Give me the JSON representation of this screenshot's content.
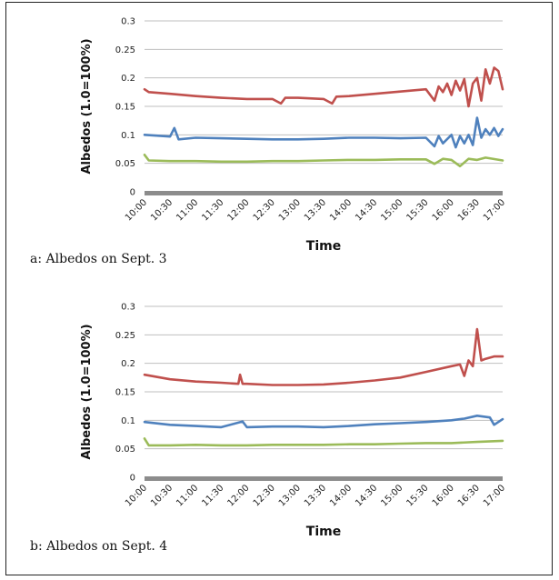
{
  "colors": {
    "series_red": "#c0504d",
    "series_blue": "#4f81bd",
    "series_green": "#9bbb59",
    "grid": "#bfbfbf",
    "axis": "#8c8c8c"
  },
  "chart_data": [
    {
      "type": "line",
      "caption": "a: Albedos on Sept. 3",
      "xlabel": "Time",
      "ylabel": "Albedos (1.0=100%)",
      "x_ticks": [
        "10:00",
        "10:30",
        "11:00",
        "11:30",
        "12:00",
        "12:30",
        "13:00",
        "13:30",
        "14:00",
        "14:30",
        "15:00",
        "15:30",
        "16:00",
        "16:30",
        "17:00"
      ],
      "y_ticks": [
        "0",
        "0.05",
        "0.1",
        "0.15",
        "0.2",
        "0.25",
        "0.3"
      ],
      "ylim": [
        0,
        0.3
      ],
      "grid": true,
      "series": [
        {
          "color": "#c0504d",
          "x": [
            "10:00",
            "10:05",
            "10:30",
            "11:00",
            "11:30",
            "12:00",
            "12:30",
            "12:40",
            "12:45",
            "13:00",
            "13:30",
            "13:40",
            "13:45",
            "14:00",
            "14:30",
            "15:00",
            "15:30",
            "15:40",
            "15:45",
            "15:50",
            "15:55",
            "16:00",
            "16:05",
            "16:10",
            "16:15",
            "16:20",
            "16:25",
            "16:30",
            "16:35",
            "16:40",
            "16:45",
            "16:50",
            "16:55",
            "17:00"
          ],
          "values": [
            0.18,
            0.175,
            0.172,
            0.168,
            0.165,
            0.163,
            0.163,
            0.155,
            0.165,
            0.165,
            0.163,
            0.155,
            0.167,
            0.168,
            0.172,
            0.176,
            0.18,
            0.16,
            0.185,
            0.175,
            0.19,
            0.17,
            0.195,
            0.178,
            0.198,
            0.15,
            0.19,
            0.2,
            0.16,
            0.215,
            0.19,
            0.218,
            0.212,
            0.18
          ]
        },
        {
          "color": "#4f81bd",
          "x": [
            "10:00",
            "10:30",
            "10:35",
            "10:40",
            "11:00",
            "11:30",
            "12:00",
            "12:30",
            "13:00",
            "13:30",
            "14:00",
            "14:30",
            "15:00",
            "15:30",
            "15:40",
            "15:45",
            "15:50",
            "16:00",
            "16:05",
            "16:10",
            "16:15",
            "16:20",
            "16:25",
            "16:30",
            "16:35",
            "16:40",
            "16:45",
            "16:50",
            "16:55",
            "17:00"
          ],
          "values": [
            0.1,
            0.097,
            0.112,
            0.092,
            0.095,
            0.094,
            0.093,
            0.092,
            0.092,
            0.093,
            0.095,
            0.095,
            0.094,
            0.095,
            0.08,
            0.098,
            0.085,
            0.1,
            0.078,
            0.098,
            0.085,
            0.1,
            0.082,
            0.13,
            0.095,
            0.11,
            0.1,
            0.112,
            0.098,
            0.11
          ]
        },
        {
          "color": "#9bbb59",
          "x": [
            "10:00",
            "10:05",
            "10:30",
            "11:00",
            "11:30",
            "12:00",
            "12:30",
            "13:00",
            "13:30",
            "14:00",
            "14:30",
            "15:00",
            "15:30",
            "15:40",
            "15:50",
            "16:00",
            "16:10",
            "16:20",
            "16:30",
            "16:40",
            "17:00"
          ],
          "values": [
            0.065,
            0.055,
            0.054,
            0.054,
            0.053,
            0.053,
            0.054,
            0.054,
            0.055,
            0.056,
            0.056,
            0.057,
            0.057,
            0.049,
            0.058,
            0.056,
            0.045,
            0.058,
            0.056,
            0.06,
            0.055
          ]
        }
      ]
    },
    {
      "type": "line",
      "caption": "b: Albedos on Sept. 4",
      "xlabel": "Time",
      "ylabel": "Albedos (1.0=100%)",
      "x_ticks": [
        "10:00",
        "10:30",
        "11:00",
        "11:30",
        "12:00",
        "12:30",
        "13:00",
        "13:30",
        "14:00",
        "14:30",
        "15:00",
        "15:30",
        "16:00",
        "16:30",
        "17:00"
      ],
      "y_ticks": [
        "0",
        "0.05",
        "0.1",
        "0.15",
        "0.2",
        "0.25",
        "0.3"
      ],
      "ylim": [
        0,
        0.3
      ],
      "grid": true,
      "series": [
        {
          "color": "#c0504d",
          "x": [
            "10:00",
            "10:30",
            "11:00",
            "11:30",
            "11:50",
            "11:52",
            "11:55",
            "12:00",
            "12:30",
            "13:00",
            "13:30",
            "14:00",
            "14:30",
            "15:00",
            "15:30",
            "16:00",
            "16:10",
            "16:15",
            "16:20",
            "16:25",
            "16:30",
            "16:35",
            "16:40",
            "16:50",
            "17:00"
          ],
          "values": [
            0.18,
            0.172,
            0.168,
            0.166,
            0.164,
            0.18,
            0.164,
            0.164,
            0.162,
            0.162,
            0.163,
            0.166,
            0.17,
            0.175,
            0.185,
            0.195,
            0.198,
            0.178,
            0.205,
            0.195,
            0.26,
            0.205,
            0.208,
            0.212,
            0.212
          ]
        },
        {
          "color": "#4f81bd",
          "x": [
            "10:00",
            "10:30",
            "11:00",
            "11:30",
            "11:55",
            "12:00",
            "12:30",
            "13:00",
            "13:30",
            "14:00",
            "14:30",
            "15:00",
            "15:30",
            "16:00",
            "16:15",
            "16:30",
            "16:45",
            "16:50",
            "17:00"
          ],
          "values": [
            0.097,
            0.092,
            0.09,
            0.088,
            0.098,
            0.088,
            0.089,
            0.089,
            0.088,
            0.09,
            0.093,
            0.095,
            0.097,
            0.1,
            0.103,
            0.108,
            0.105,
            0.092,
            0.102
          ]
        },
        {
          "color": "#9bbb59",
          "x": [
            "10:00",
            "10:05",
            "10:30",
            "11:00",
            "11:30",
            "12:00",
            "12:30",
            "13:00",
            "13:30",
            "14:00",
            "14:30",
            "15:00",
            "15:30",
            "16:00",
            "16:30",
            "17:00"
          ],
          "values": [
            0.068,
            0.056,
            0.056,
            0.057,
            0.056,
            0.056,
            0.057,
            0.057,
            0.057,
            0.058,
            0.058,
            0.059,
            0.06,
            0.06,
            0.062,
            0.064
          ]
        }
      ]
    }
  ]
}
